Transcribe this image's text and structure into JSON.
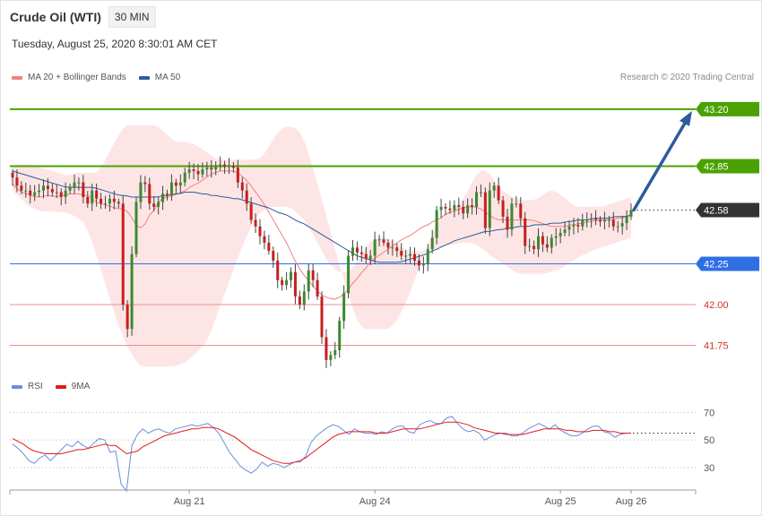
{
  "header": {
    "instrument": "Crude Oil (WTI)",
    "interval": "30 MIN",
    "timestamp": "Tuesday, August 25, 2020 8:30:01 AM CET"
  },
  "legend_top": [
    {
      "label": "MA 20 + Bollinger Bands",
      "color": "#f08080"
    },
    {
      "label": "MA 50",
      "color": "#2c5b9c"
    }
  ],
  "legend_bottom": [
    {
      "label": "RSI",
      "color": "#6a8ed8"
    },
    {
      "label": "9MA",
      "color": "#e41a1c"
    }
  ],
  "copyright": "Research © 2020 Trading Central",
  "colors": {
    "resistance": "#4aa200",
    "current": "#333333",
    "pivot": "#2f6fe4",
    "support": "#ee8f8f",
    "support_text": "#d0302f",
    "arrow": "#2c5b9c",
    "candle_up": "#3a8a2f",
    "candle_down": "#c81e1e",
    "band_fill": "#fde0e0"
  },
  "chart_data": [
    {
      "type": "candlestick",
      "title": "Crude Oil (WTI)",
      "interval": "30 MIN",
      "ylim": [
        41.56,
        43.32
      ],
      "levels": [
        {
          "value": 43.2,
          "label": "43.20",
          "kind": "resistance"
        },
        {
          "value": 42.85,
          "label": "42.85",
          "kind": "resistance"
        },
        {
          "value": 42.58,
          "label": "42.58",
          "kind": "current"
        },
        {
          "value": 42.25,
          "label": "42.25",
          "kind": "pivot"
        },
        {
          "value": 42.0,
          "label": "42.00",
          "kind": "support"
        },
        {
          "value": 41.75,
          "label": "41.75",
          "kind": "support"
        }
      ],
      "x_ticks": [
        "Aug 21",
        "Aug 24",
        "Aug 25",
        "Aug 26"
      ],
      "x_tick_index": [
        40,
        82,
        124,
        140
      ],
      "n_bars": 141,
      "series": [
        {
          "name": "MA 20 + Bollinger Bands",
          "style": "band"
        },
        {
          "name": "MA 50",
          "style": "line"
        }
      ],
      "close": [
        42.78,
        42.73,
        42.7,
        42.7,
        42.67,
        42.69,
        42.7,
        42.73,
        42.71,
        42.69,
        42.69,
        42.66,
        42.7,
        42.72,
        42.75,
        42.75,
        42.66,
        42.62,
        42.7,
        42.65,
        42.62,
        42.62,
        42.65,
        42.63,
        42.62,
        42.0,
        41.85,
        42.31,
        42.63,
        42.75,
        42.74,
        42.62,
        42.6,
        42.63,
        42.68,
        42.67,
        42.75,
        42.73,
        42.75,
        42.81,
        42.83,
        42.82,
        42.8,
        42.83,
        42.84,
        42.83,
        42.85,
        42.86,
        42.85,
        42.85,
        42.84,
        42.75,
        42.7,
        42.62,
        42.52,
        42.48,
        42.42,
        42.38,
        42.33,
        42.27,
        42.15,
        42.12,
        42.15,
        42.2,
        42.05,
        42.0,
        42.08,
        42.21,
        42.15,
        42.05,
        41.8,
        41.66,
        41.69,
        41.72,
        41.9,
        42.07,
        42.3,
        42.35,
        42.32,
        42.31,
        42.28,
        42.3,
        42.4,
        42.4,
        42.38,
        42.35,
        42.35,
        42.33,
        42.3,
        42.3,
        42.31,
        42.27,
        42.24,
        42.25,
        42.34,
        42.41,
        42.58,
        42.6,
        42.59,
        42.58,
        42.61,
        42.6,
        42.56,
        42.61,
        42.6,
        42.69,
        42.69,
        42.47,
        42.7,
        42.73,
        42.64,
        42.54,
        42.46,
        42.62,
        42.62,
        42.53,
        42.36,
        42.36,
        42.34,
        42.42,
        42.37,
        42.35,
        42.41,
        42.42,
        42.44,
        42.46,
        42.48,
        42.49,
        42.48,
        42.52,
        42.52,
        42.53,
        42.52,
        42.51,
        42.52,
        42.52,
        42.48,
        42.48,
        42.5,
        42.54,
        42.58
      ],
      "ma20": [
        42.74,
        42.71,
        42.69,
        42.68,
        42.67,
        42.66,
        42.66,
        42.67,
        42.67,
        42.66,
        42.67,
        42.67,
        42.68,
        42.68,
        42.68,
        42.67,
        42.67,
        42.65,
        42.62,
        42.62,
        42.61,
        42.6,
        42.59,
        42.59,
        42.58,
        42.55,
        42.49,
        42.47,
        42.49,
        42.55,
        42.58,
        42.63,
        42.66,
        42.66,
        42.67,
        42.68,
        42.69,
        42.71,
        42.73,
        42.74,
        42.76,
        42.78,
        42.8,
        42.81,
        42.82,
        42.82,
        42.82,
        42.82,
        42.8,
        42.78,
        42.75,
        42.71,
        42.67,
        42.63,
        42.58,
        42.53,
        42.48,
        42.43,
        42.38,
        42.32,
        42.26,
        42.21,
        42.17,
        42.14,
        42.1,
        42.07,
        42.05,
        42.04,
        42.03,
        42.04,
        42.06,
        42.09,
        42.13,
        42.16,
        42.2,
        42.23,
        42.27,
        42.29,
        42.31,
        42.33,
        42.35,
        42.37,
        42.39,
        42.41,
        42.42,
        42.44,
        42.46,
        42.48,
        42.49,
        42.51,
        42.52,
        42.54,
        42.56,
        42.57,
        42.58,
        42.59,
        42.6,
        42.6,
        42.6,
        42.59,
        42.57,
        42.55,
        42.53,
        42.52,
        42.52,
        42.52,
        42.52,
        42.52,
        42.52,
        42.52,
        42.52,
        42.51,
        42.5,
        42.49,
        42.48,
        42.48,
        42.48,
        42.48,
        42.49,
        42.49,
        42.5,
        42.5,
        42.51,
        42.51,
        42.52,
        42.52,
        42.52,
        42.52,
        42.53,
        42.53,
        42.54,
        42.55
      ],
      "bb_upper": [
        42.85,
        42.86,
        42.86,
        42.86,
        42.86,
        42.85,
        42.84,
        42.83,
        42.82,
        42.81,
        42.8,
        42.79,
        42.8,
        42.81,
        42.81,
        42.81,
        42.81,
        42.81,
        42.85,
        42.9,
        42.96,
        43.02,
        43.07,
        43.1,
        43.1,
        43.1,
        43.1,
        43.1,
        43.1,
        43.1,
        43.08,
        43.05,
        43.02,
        43.0,
        43.0,
        43.0,
        42.99,
        42.98,
        42.96,
        42.94,
        42.92,
        42.9,
        42.89,
        42.89,
        42.89,
        42.89,
        42.89,
        42.89,
        42.89,
        42.89,
        42.9,
        42.93,
        42.98,
        43.03,
        43.07,
        43.09,
        43.09,
        43.09,
        43.06,
        43.0,
        42.91,
        42.81,
        42.7,
        42.59,
        42.48,
        42.36,
        42.25,
        42.15,
        42.05,
        41.95,
        41.88,
        41.85,
        41.85,
        41.85,
        41.85,
        41.85,
        41.85,
        41.88,
        41.92,
        41.98,
        42.05,
        42.13,
        42.21,
        42.29,
        42.37,
        42.45,
        42.51,
        42.55,
        42.57,
        42.58,
        42.61,
        42.65,
        42.7,
        42.76,
        42.81,
        42.83,
        42.82,
        42.78,
        42.73,
        42.7,
        42.68,
        42.66,
        42.65,
        42.64,
        42.64,
        42.64,
        42.65,
        42.67,
        42.69,
        42.7,
        42.69,
        42.67,
        42.64,
        42.62,
        42.6,
        42.6,
        42.6,
        42.6,
        42.6,
        42.6,
        42.61,
        42.62,
        42.63,
        42.64,
        42.65,
        42.66
      ],
      "bb_lower": [
        42.7,
        42.67,
        42.64,
        42.61,
        42.59,
        42.58,
        42.57,
        42.57,
        42.57,
        42.57,
        42.57,
        42.56,
        42.55,
        42.53,
        42.51,
        42.45,
        42.37,
        42.27,
        42.17,
        42.07,
        41.97,
        41.88,
        41.8,
        41.73,
        41.68,
        41.63,
        41.62,
        41.62,
        41.62,
        41.62,
        41.62,
        41.62,
        41.62,
        41.63,
        41.64,
        41.66,
        41.69,
        41.72,
        41.75,
        41.8,
        41.88,
        41.97,
        42.05,
        42.13,
        42.22,
        42.3,
        42.38,
        42.45,
        42.51,
        42.56,
        42.58,
        42.6,
        42.6,
        42.6,
        42.6,
        42.6,
        42.58,
        42.55,
        42.52,
        42.47,
        42.42,
        42.36,
        42.3,
        42.25,
        42.22,
        42.2,
        42.2,
        42.21,
        42.24,
        42.29,
        42.34,
        42.38,
        42.4,
        42.41,
        42.41,
        42.4,
        42.38,
        42.36,
        42.34,
        42.33,
        42.33,
        42.33,
        42.33,
        42.34,
        42.34,
        42.35,
        42.36,
        42.37,
        42.37,
        42.38,
        42.38,
        42.38,
        42.37,
        42.35,
        42.33,
        42.3,
        42.28,
        42.26,
        42.24,
        42.22,
        42.2,
        42.19,
        42.19,
        42.19,
        42.19,
        42.19,
        42.19,
        42.2,
        42.21,
        42.22,
        42.24,
        42.26,
        42.28,
        42.3,
        42.31,
        42.33,
        42.34,
        42.35,
        42.36,
        42.37,
        42.38,
        42.39,
        42.4,
        42.41
      ],
      "ma50": [
        42.82,
        42.81,
        42.8,
        42.79,
        42.78,
        42.77,
        42.76,
        42.75,
        42.74,
        42.73,
        42.72,
        42.72,
        42.72,
        42.72,
        42.72,
        42.72,
        42.71,
        42.7,
        42.69,
        42.68,
        42.67,
        42.67,
        42.66,
        42.66,
        42.66,
        42.66,
        42.66,
        42.66,
        42.67,
        42.67,
        42.68,
        42.68,
        42.69,
        42.69,
        42.69,
        42.68,
        42.68,
        42.67,
        42.67,
        42.66,
        42.66,
        42.65,
        42.65,
        42.64,
        42.63,
        42.62,
        42.61,
        42.6,
        42.59,
        42.57,
        42.56,
        42.55,
        42.53,
        42.51,
        42.5,
        42.48,
        42.46,
        42.44,
        42.42,
        42.4,
        42.38,
        42.36,
        42.34,
        42.32,
        42.3,
        42.29,
        42.28,
        42.27,
        42.26,
        42.26,
        42.26,
        42.26,
        42.26,
        42.27,
        42.28,
        42.29,
        42.3,
        42.31,
        42.33,
        42.34,
        42.36,
        42.37,
        42.39,
        42.4,
        42.41,
        42.42,
        42.43,
        42.44,
        42.45,
        42.45,
        42.46,
        42.46,
        42.47,
        42.47,
        42.48,
        42.48,
        42.48,
        42.49,
        42.49,
        42.49,
        42.5,
        42.5,
        42.5,
        42.51,
        42.51,
        42.52,
        42.52,
        42.52,
        42.53,
        42.53,
        42.53,
        42.53,
        42.54,
        42.54,
        42.54,
        42.55
      ]
    },
    {
      "type": "line",
      "ylim": [
        15,
        80
      ],
      "y_ticks": [
        70,
        50,
        30
      ],
      "series": [
        {
          "name": "RSI",
          "values": [
            47,
            44,
            40,
            35,
            33,
            37,
            39,
            35,
            39,
            43,
            47,
            45,
            49,
            46,
            44,
            48,
            51,
            50,
            41,
            42,
            18,
            13,
            46,
            54,
            58,
            55,
            57,
            58,
            56,
            55,
            58,
            59,
            60,
            61,
            60,
            61,
            62,
            59,
            55,
            48,
            41,
            36,
            31,
            28,
            26,
            29,
            34,
            31,
            33,
            32,
            30,
            32,
            34,
            34,
            38,
            48,
            53,
            56,
            59,
            61,
            60,
            57,
            54,
            58,
            56,
            55,
            55,
            54,
            56,
            55,
            58,
            60,
            60,
            56,
            55,
            61,
            63,
            64,
            62,
            62,
            66,
            67,
            62,
            58,
            56,
            57,
            55,
            50,
            52,
            54,
            55,
            55,
            53,
            53,
            55,
            58,
            60,
            62,
            60,
            58,
            61,
            57,
            55,
            53,
            53,
            55,
            58,
            60,
            60,
            56,
            55,
            52,
            54,
            55,
            55
          ]
        },
        {
          "name": "9MA",
          "values": [
            51,
            49,
            47,
            44,
            42,
            41,
            40,
            40,
            40,
            40,
            41,
            42,
            43,
            43,
            44,
            45,
            46,
            47,
            46,
            46,
            43,
            40,
            41,
            42,
            45,
            47,
            49,
            51,
            53,
            54,
            55,
            56,
            57,
            58,
            58,
            59,
            59,
            59,
            58,
            56,
            54,
            52,
            49,
            46,
            43,
            41,
            39,
            37,
            35,
            34,
            33,
            33,
            34,
            35,
            37,
            40,
            43,
            46,
            49,
            52,
            54,
            55,
            56,
            56,
            56,
            56,
            56,
            55,
            55,
            55,
            56,
            57,
            58,
            58,
            58,
            58,
            59,
            60,
            61,
            62,
            63,
            63,
            63,
            62,
            61,
            59,
            58,
            57,
            56,
            55,
            55,
            54,
            54,
            54,
            54,
            55,
            56,
            57,
            58,
            58,
            58,
            58,
            57,
            57,
            56,
            56,
            56,
            57,
            57,
            57,
            56,
            56,
            55,
            55,
            55
          ]
        }
      ]
    }
  ]
}
